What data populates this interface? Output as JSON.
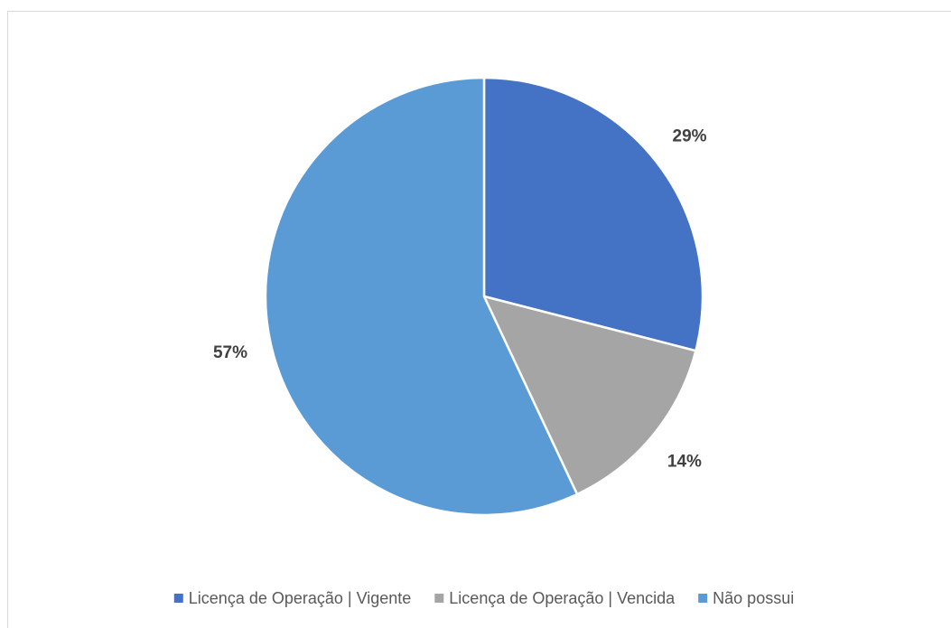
{
  "chart_data": {
    "type": "pie",
    "categories": [
      "Licença de Operação | Vigente",
      "Licença de Operação | Vencida",
      "Não possui"
    ],
    "values": [
      29,
      14,
      57
    ],
    "value_labels": [
      "29%",
      "14%",
      "57%"
    ],
    "colors": [
      "#4472c4",
      "#a5a5a5",
      "#5b9bd5"
    ],
    "legend": "bottom"
  }
}
